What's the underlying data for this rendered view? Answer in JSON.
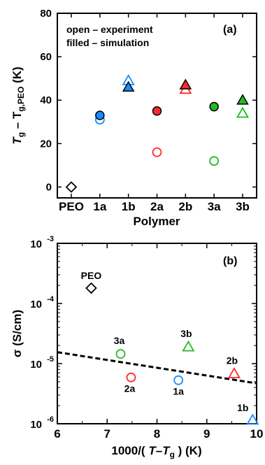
{
  "chart_data": [
    {
      "type": "scatter",
      "panel_label": "(a)",
      "ylabel_main": "T",
      "ylabel_sub1": "g",
      "ylabel_mid": " – T",
      "ylabel_sub2": "g,PEO",
      "ylabel_unit": " (K)",
      "xlabel": "Polymer",
      "categories": [
        "PEO",
        "1a",
        "1b",
        "2a",
        "2b",
        "3a",
        "3b"
      ],
      "ylim": [
        -5,
        80
      ],
      "yticks": [
        0,
        20,
        40,
        60,
        80
      ],
      "annotations": [
        "open  – experiment",
        "filled  – simulation"
      ],
      "series": [
        {
          "name": "open – experiment",
          "fill": "open",
          "points": [
            {
              "category": "PEO",
              "y": 0,
              "marker": "diamond",
              "color": "#000000"
            },
            {
              "category": "1a",
              "y": 31,
              "marker": "circle",
              "color": "#1a8cff"
            },
            {
              "category": "1b",
              "y": 49,
              "marker": "triangle",
              "color": "#1a8cff"
            },
            {
              "category": "2a",
              "y": 16,
              "marker": "circle",
              "color": "#ff2a2a"
            },
            {
              "category": "2b",
              "y": 45,
              "marker": "triangle",
              "color": "#ff2a2a"
            },
            {
              "category": "3a",
              "y": 12,
              "marker": "circle",
              "color": "#22bb22"
            },
            {
              "category": "3b",
              "y": 34,
              "marker": "triangle",
              "color": "#22bb22"
            }
          ]
        },
        {
          "name": "filled – simulation",
          "fill": "filled",
          "points": [
            {
              "category": "1a",
              "y": 33,
              "marker": "circle",
              "color": "#1a8cff"
            },
            {
              "category": "1b",
              "y": 46,
              "marker": "triangle",
              "color": "#1a8cff"
            },
            {
              "category": "2a",
              "y": 35,
              "marker": "circle",
              "color": "#ff2a2a"
            },
            {
              "category": "2b",
              "y": 47,
              "marker": "triangle",
              "color": "#ff2a2a"
            },
            {
              "category": "3a",
              "y": 37,
              "marker": "circle",
              "color": "#22bb22"
            },
            {
              "category": "3b",
              "y": 40,
              "marker": "triangle",
              "color": "#22bb22"
            }
          ]
        }
      ]
    },
    {
      "type": "scatter",
      "panel_label": "(b)",
      "ylabel": "σ (S/cm)",
      "xlabel_pre": "1000/( ",
      "xlabel_T": "T",
      "xlabel_dash": "–",
      "xlabel_T2": "T",
      "xlabel_sub": "g",
      "xlabel_post": " ) (K)",
      "yscale": "log",
      "xlim": [
        6,
        10
      ],
      "xticks": [
        6,
        7,
        8,
        9,
        10
      ],
      "ylim": [
        1e-06,
        0.001
      ],
      "yticks": [
        {
          "value": 1e-06,
          "base": "10",
          "exp": "-6"
        },
        {
          "value": 1e-05,
          "base": "10",
          "exp": "-5"
        },
        {
          "value": 0.0001,
          "base": "10",
          "exp": "-4"
        },
        {
          "value": 0.001,
          "base": "10",
          "exp": "-3"
        }
      ],
      "points": [
        {
          "label": "PEO",
          "x": 6.68,
          "y": 0.00018,
          "marker": "diamond",
          "color": "#000000"
        },
        {
          "label": "3a",
          "x": 7.27,
          "y": 1.45e-05,
          "marker": "circle",
          "color": "#22bb22"
        },
        {
          "label": "2a",
          "x": 7.48,
          "y": 5.9e-06,
          "marker": "circle",
          "color": "#ff2a2a"
        },
        {
          "label": "1a",
          "x": 8.43,
          "y": 5.3e-06,
          "marker": "circle",
          "color": "#1a8cff"
        },
        {
          "label": "3b",
          "x": 8.63,
          "y": 1.9e-05,
          "marker": "triangle",
          "color": "#22bb22"
        },
        {
          "label": "2b",
          "x": 9.55,
          "y": 6.8e-06,
          "marker": "triangle",
          "color": "#ff2a2a"
        },
        {
          "label": "1b",
          "x": 9.92,
          "y": 1.15e-06,
          "marker": "triangle",
          "color": "#1a8cff"
        }
      ],
      "fit_line": {
        "style": "dashed",
        "x": [
          6,
          10
        ],
        "y": [
          1.55e-05,
          4.7e-06
        ]
      }
    }
  ]
}
